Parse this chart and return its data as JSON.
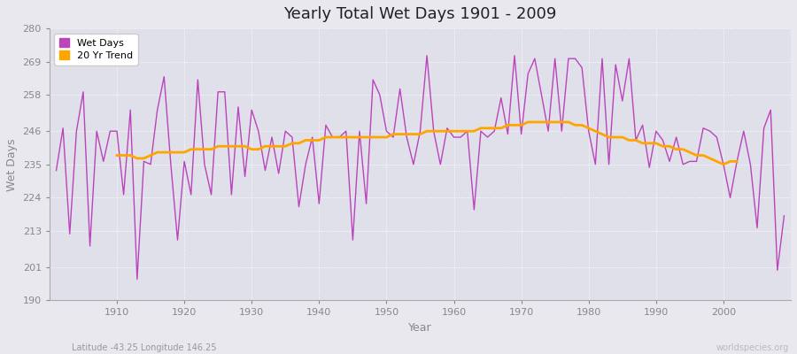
{
  "title": "Yearly Total Wet Days 1901 - 2009",
  "xlabel": "Year",
  "ylabel": "Wet Days",
  "footnote_left": "Latitude -43.25 Longitude 146.25",
  "footnote_right": "worldspecies.org",
  "ylim": [
    190,
    280
  ],
  "yticks": [
    190,
    201,
    213,
    224,
    235,
    246,
    258,
    269,
    280
  ],
  "xticks": [
    1910,
    1920,
    1930,
    1940,
    1950,
    1960,
    1970,
    1980,
    1990,
    2000
  ],
  "wet_days_color": "#BB44BB",
  "trend_color": "#FFA500",
  "bg_color": "#E8E8EE",
  "plot_bg_color": "#E0E0EA",
  "grid_color": "#FFFFFF",
  "title_color": "#222222",
  "tick_color": "#888888",
  "wet_days": {
    "1901": 233,
    "1902": 247,
    "1903": 212,
    "1904": 246,
    "1905": 259,
    "1906": 208,
    "1907": 246,
    "1908": 236,
    "1909": 246,
    "1910": 246,
    "1911": 225,
    "1912": 253,
    "1913": 197,
    "1914": 236,
    "1915": 235,
    "1916": 253,
    "1917": 264,
    "1918": 235,
    "1919": 210,
    "1920": 236,
    "1921": 225,
    "1922": 263,
    "1923": 235,
    "1924": 225,
    "1925": 259,
    "1926": 259,
    "1927": 225,
    "1928": 254,
    "1929": 231,
    "1930": 253,
    "1931": 246,
    "1932": 233,
    "1933": 244,
    "1934": 232,
    "1935": 246,
    "1936": 244,
    "1937": 221,
    "1938": 235,
    "1939": 244,
    "1940": 222,
    "1941": 248,
    "1942": 244,
    "1943": 244,
    "1944": 246,
    "1945": 210,
    "1946": 246,
    "1947": 222,
    "1948": 263,
    "1949": 258,
    "1950": 246,
    "1951": 244,
    "1952": 260,
    "1953": 244,
    "1954": 235,
    "1955": 246,
    "1956": 271,
    "1957": 246,
    "1958": 235,
    "1959": 247,
    "1960": 244,
    "1961": 244,
    "1962": 246,
    "1963": 220,
    "1964": 246,
    "1965": 244,
    "1966": 246,
    "1967": 257,
    "1968": 245,
    "1969": 271,
    "1970": 245,
    "1971": 265,
    "1972": 270,
    "1973": 258,
    "1974": 246,
    "1975": 270,
    "1976": 246,
    "1977": 270,
    "1978": 270,
    "1979": 267,
    "1980": 246,
    "1981": 235,
    "1982": 270,
    "1983": 235,
    "1984": 268,
    "1985": 256,
    "1986": 270,
    "1987": 243,
    "1988": 248,
    "1989": 234,
    "1990": 246,
    "1991": 243,
    "1992": 236,
    "1993": 244,
    "1994": 235,
    "1995": 236,
    "1996": 236,
    "1997": 247,
    "1998": 246,
    "1999": 244,
    "2000": 235,
    "2001": 224,
    "2002": 236,
    "2003": 246,
    "2004": 235,
    "2005": 214,
    "2006": 247,
    "2007": 253,
    "2008": 200,
    "2009": 218
  },
  "trend_20yr": {
    "1910": 238,
    "1911": 238,
    "1912": 238,
    "1913": 237,
    "1914": 237,
    "1915": 238,
    "1916": 239,
    "1917": 239,
    "1918": 239,
    "1919": 239,
    "1920": 239,
    "1921": 240,
    "1922": 240,
    "1923": 240,
    "1924": 240,
    "1925": 241,
    "1926": 241,
    "1927": 241,
    "1928": 241,
    "1929": 241,
    "1930": 240,
    "1931": 240,
    "1932": 241,
    "1933": 241,
    "1934": 241,
    "1935": 241,
    "1936": 242,
    "1937": 242,
    "1938": 243,
    "1939": 243,
    "1940": 243,
    "1941": 244,
    "1942": 244,
    "1943": 244,
    "1944": 244,
    "1945": 244,
    "1946": 244,
    "1947": 244,
    "1948": 244,
    "1949": 244,
    "1950": 244,
    "1951": 245,
    "1952": 245,
    "1953": 245,
    "1954": 245,
    "1955": 245,
    "1956": 246,
    "1957": 246,
    "1958": 246,
    "1959": 246,
    "1960": 246,
    "1961": 246,
    "1962": 246,
    "1963": 246,
    "1964": 247,
    "1965": 247,
    "1966": 247,
    "1967": 247,
    "1968": 248,
    "1969": 248,
    "1970": 248,
    "1971": 249,
    "1972": 249,
    "1973": 249,
    "1974": 249,
    "1975": 249,
    "1976": 249,
    "1977": 249,
    "1978": 248,
    "1979": 248,
    "1980": 247,
    "1981": 246,
    "1982": 245,
    "1983": 244,
    "1984": 244,
    "1985": 244,
    "1986": 243,
    "1987": 243,
    "1988": 242,
    "1989": 242,
    "1990": 242,
    "1991": 241,
    "1992": 241,
    "1993": 240,
    "1994": 240,
    "1995": 239,
    "1996": 238,
    "1997": 238,
    "1998": 237,
    "1999": 236,
    "2000": 235,
    "2001": 236,
    "2002": 236
  }
}
